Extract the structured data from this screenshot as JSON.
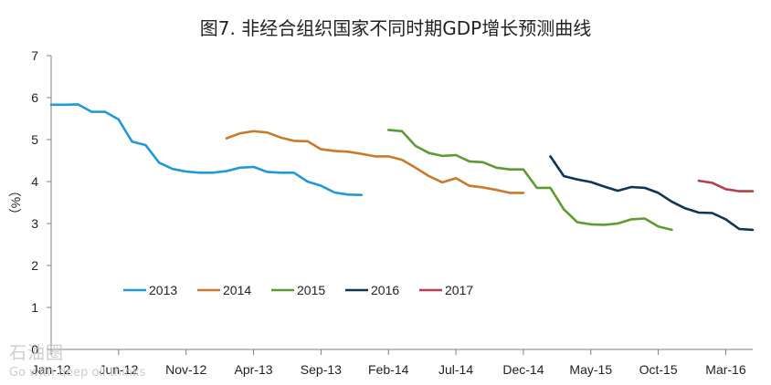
{
  "chart_data": {
    "type": "line",
    "title": "图7. 非经合组织国家不同时期GDP增长预测曲线",
    "ylabel": "（%）",
    "ylim": [
      0,
      7
    ],
    "yticks": [
      0,
      1,
      2,
      3,
      4,
      5,
      6,
      7
    ],
    "xlim": [
      0,
      52
    ],
    "xtick_labels": [
      {
        "label": "Jan-12",
        "x": 0
      },
      {
        "label": "Jun-12",
        "x": 5
      },
      {
        "label": "Nov-12",
        "x": 10
      },
      {
        "label": "Apr-13",
        "x": 15
      },
      {
        "label": "Sep-13",
        "x": 20
      },
      {
        "label": "Feb-14",
        "x": 25
      },
      {
        "label": "Jul-14",
        "x": 30
      },
      {
        "label": "Dec-14",
        "x": 35
      },
      {
        "label": "May-15",
        "x": 40
      },
      {
        "label": "Oct-15",
        "x": 45
      },
      {
        "label": "Mar-16",
        "x": 50
      }
    ],
    "legend_position": "bottom-left",
    "grid": false,
    "series": [
      {
        "name": "2013",
        "color": "#1f9ad6",
        "x": [
          0,
          1,
          2,
          3,
          4,
          5,
          6,
          7,
          8,
          9,
          10,
          11,
          12,
          13,
          14,
          15,
          16,
          17,
          18,
          19,
          20,
          21,
          22,
          23
        ],
        "y": [
          5.83,
          5.83,
          5.84,
          5.66,
          5.66,
          5.48,
          4.95,
          4.87,
          4.45,
          4.3,
          4.24,
          4.21,
          4.21,
          4.25,
          4.33,
          4.35,
          4.23,
          4.21,
          4.21,
          4.0,
          3.9,
          3.74,
          3.69,
          3.68
        ]
      },
      {
        "name": "2014",
        "color": "#c8792c",
        "x": [
          13,
          14,
          15,
          16,
          17,
          18,
          19,
          20,
          21,
          22,
          23,
          24,
          25,
          26,
          27,
          28,
          29,
          30,
          31,
          32,
          33,
          34,
          35
        ],
        "y": [
          5.03,
          5.15,
          5.2,
          5.17,
          5.05,
          4.97,
          4.96,
          4.77,
          4.73,
          4.71,
          4.66,
          4.6,
          4.6,
          4.52,
          4.33,
          4.13,
          3.98,
          4.08,
          3.9,
          3.86,
          3.8,
          3.73,
          3.73
        ]
      },
      {
        "name": "2015",
        "color": "#5e9a34",
        "x": [
          25,
          26,
          27,
          28,
          29,
          30,
          31,
          32,
          33,
          34,
          35,
          36,
          37,
          38,
          39,
          40,
          41,
          42,
          43,
          44,
          45,
          46
        ],
        "y": [
          5.23,
          5.2,
          4.85,
          4.68,
          4.61,
          4.63,
          4.48,
          4.46,
          4.33,
          4.29,
          4.29,
          3.85,
          3.85,
          3.34,
          3.03,
          2.98,
          2.97,
          3.0,
          3.1,
          3.12,
          2.93,
          2.85
        ]
      },
      {
        "name": "2016",
        "color": "#0f3553",
        "x": [
          37,
          38,
          39,
          40,
          41,
          42,
          43,
          44,
          45,
          46,
          47,
          48,
          49,
          50,
          51,
          52
        ],
        "y": [
          4.6,
          4.13,
          4.05,
          3.99,
          3.88,
          3.78,
          3.87,
          3.85,
          3.73,
          3.52,
          3.36,
          3.26,
          3.25,
          3.1,
          2.87,
          2.85
        ]
      },
      {
        "name": "2017",
        "color": "#b3414b",
        "x": [
          48,
          49,
          50,
          51,
          52
        ],
        "y": [
          4.02,
          3.97,
          3.82,
          3.77,
          3.77
        ]
      }
    ]
  },
  "watermark": {
    "main": "石油圈",
    "sub": "Go with deep oil thinks"
  }
}
